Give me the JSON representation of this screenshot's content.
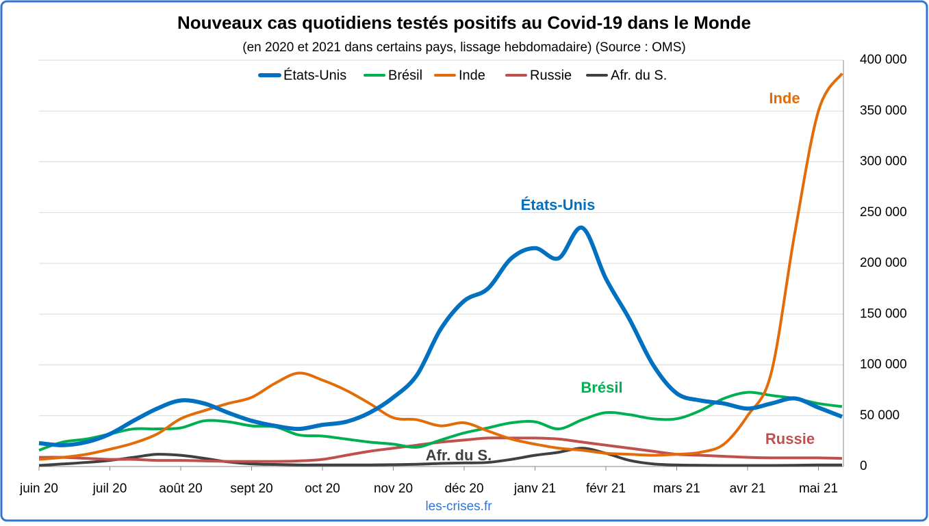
{
  "chart_data": {
    "type": "line",
    "title": "Nouveaux cas quotidiens testés positifs au Covid-19 dans le Monde",
    "subtitle": "(en 2020 et 2021 dans certains pays, lissage hebdomadaire) (Source : OMS)",
    "source": "les-crises.fr",
    "categories": [
      "juin 20",
      null,
      null,
      "juil 20",
      null,
      null,
      "août 20",
      null,
      null,
      "sept 20",
      null,
      null,
      "oct 20",
      null,
      null,
      "nov 20",
      null,
      null,
      "déc 20",
      null,
      null,
      "janv 21",
      null,
      null,
      "févr 21",
      null,
      null,
      "mars 21",
      null,
      null,
      "avr 21",
      null,
      null,
      "mai 21",
      null
    ],
    "ylim": [
      0,
      400000
    ],
    "yticks": [
      0,
      {
        "value": 50000,
        "label": "50 000"
      },
      {
        "value": 100000,
        "label": "100 000"
      },
      {
        "value": 150000,
        "label": "150 000"
      },
      {
        "value": 200000,
        "label": "200 000"
      },
      {
        "value": 250000,
        "label": "250 000"
      },
      {
        "value": 300000,
        "label": "300 000"
      },
      {
        "value": 350000,
        "label": "350 000"
      },
      {
        "value": 400000,
        "label": "400 000"
      }
    ],
    "y_axis_side": "right",
    "grid": true,
    "legend": "top",
    "series": [
      {
        "name": "États-Unis",
        "color": "#0070c0",
        "values": [
          23000,
          21000,
          24000,
          32000,
          45000,
          57000,
          65000,
          62000,
          53000,
          45000,
          40000,
          37000,
          41000,
          44000,
          53000,
          68000,
          90000,
          135000,
          163000,
          175000,
          205000,
          215000,
          205000,
          235000,
          185000,
          145000,
          100000,
          72000,
          65000,
          62000,
          57000,
          62000,
          67000,
          58000,
          49000
        ]
      },
      {
        "name": "Brésil",
        "color": "#00b050",
        "values": [
          16000,
          24000,
          27000,
          32000,
          37000,
          37000,
          38000,
          45000,
          44000,
          40000,
          39000,
          31000,
          30000,
          27000,
          24000,
          22000,
          19000,
          26000,
          33000,
          38000,
          43000,
          44000,
          37000,
          46000,
          53000,
          51000,
          47000,
          47000,
          55000,
          67000,
          73000,
          70000,
          67000,
          62000,
          59000
        ]
      },
      {
        "name": "Inde",
        "color": "#e36c09",
        "values": [
          7000,
          9000,
          12000,
          17000,
          23000,
          32000,
          47000,
          55000,
          62000,
          68000,
          82000,
          92000,
          85000,
          75000,
          62000,
          48000,
          46000,
          40000,
          43000,
          35000,
          27000,
          22000,
          18000,
          16000,
          13000,
          12000,
          11000,
          12000,
          14000,
          22000,
          50000,
          92000,
          230000,
          350000,
          387000
        ]
      },
      {
        "name": "Russie",
        "color": "#c0504d",
        "values": [
          9000,
          9000,
          8000,
          7000,
          7000,
          6000,
          6000,
          5500,
          5000,
          5000,
          5000,
          5500,
          7000,
          11000,
          15000,
          18000,
          21000,
          24000,
          26000,
          28000,
          28000,
          28000,
          27000,
          24000,
          21000,
          18000,
          15000,
          12000,
          11000,
          10000,
          9000,
          8500,
          8500,
          8500,
          8000
        ]
      },
      {
        "name": "Afr. du S.",
        "color": "#404040",
        "values": [
          1000,
          2500,
          4000,
          6000,
          9000,
          12000,
          11000,
          8000,
          4500,
          2500,
          2000,
          1500,
          1500,
          1500,
          1500,
          1800,
          2200,
          3000,
          3500,
          4000,
          7000,
          11000,
          14000,
          18000,
          13000,
          6000,
          2500,
          1500,
          1200,
          1000,
          1000,
          1000,
          1200,
          1500,
          1500
        ]
      }
    ],
    "annotations": [
      "Inde",
      "États-Unis",
      "Brésil",
      "Russie",
      "Afr. du S."
    ]
  }
}
